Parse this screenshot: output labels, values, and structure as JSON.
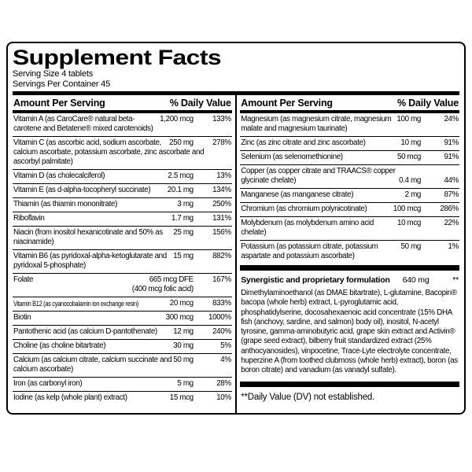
{
  "colors": {
    "background": "#ffffff",
    "text": "#000000",
    "rule": "#000000",
    "border": "#000000"
  },
  "panel": {
    "title": "Supplement Facts",
    "serving_size": "Serving Size 4 tablets",
    "servings_per_container": "Servings Per Container 45"
  },
  "columns": [
    {
      "header": {
        "amount_label": "Amount Per Serving",
        "dv_label": "% Daily Value"
      },
      "rows": [
        {
          "name": "Vitamin A (as CaroCare® natural beta-carotene and Betatene® mixed carotenoids)",
          "amount": "1,200 mcg",
          "dv": "133%"
        },
        {
          "name": "Vitamin C (as ascorbic acid, sodium ascorbate, calcium ascorbate, potassium ascorbate, zinc ascorbate and ascorbyl palmitate)",
          "amount": "250 mg",
          "dv": "278%"
        },
        {
          "name": "Vitamin D (as cholecalciferol)",
          "amount": "2.5 mcg",
          "dv": "13%"
        },
        {
          "name": "Vitamin E (as d-alpha-tocopheryl succinate)",
          "amount": "20.1 mg",
          "dv": "134%"
        },
        {
          "name": "Thiamin (as thiamin mononitrate)",
          "amount": "3 mg",
          "dv": "250%"
        },
        {
          "name": "Riboflavin",
          "amount": "1.7 mg",
          "dv": "131%"
        },
        {
          "name": "Niacin (from inositol hexanicotinate and 50% as niacinamide)",
          "amount": "25 mg",
          "dv": "156%"
        },
        {
          "name": "Vitamin B6 (as pyridoxal-alpha-ketoglutarate and pyridoxal 5-phosphate)",
          "amount": "15 mg",
          "dv": "882%"
        },
        {
          "name": "Folate",
          "amount": "665 mcg DFE",
          "amount2": "(400 mcg folic acid)",
          "dv": "167%"
        },
        {
          "name": "Vitamin B12 (as cyanocobalamin ion exchange resin)",
          "amount": "20 mcg",
          "dv": "833%",
          "condensed": true
        },
        {
          "name": "Biotin",
          "amount": "300 mcg",
          "dv": "1000%"
        },
        {
          "name": "Pantothenic acid (as calcium D-pantothenate)",
          "amount": "12 mg",
          "dv": "240%"
        },
        {
          "name": "Choline (as choline bitartrate)",
          "amount": "30 mg",
          "dv": "5%"
        },
        {
          "name": "Calcium (as calcium citrate, calcium succinate and calcium ascorbate)",
          "amount": "50 mg",
          "dv": "4%"
        },
        {
          "name": "Iron (as carbonyl iron)",
          "amount": "5 mg",
          "dv": "28%"
        },
        {
          "name": "Iodine (as kelp (whole plant) extract)",
          "amount": "15 mcg",
          "dv": "10%"
        }
      ]
    },
    {
      "header": {
        "amount_label": "Amount Per Serving",
        "dv_label": "% Daily Value"
      },
      "rows": [
        {
          "name": "Magnesium (as magnesium citrate, magnesium malate and magnesium taurinate)",
          "amount": "100 mg",
          "dv": "24%"
        },
        {
          "name": "Zinc (as zinc citrate and zinc ascorbate)",
          "amount": "10 mg",
          "dv": "91%"
        },
        {
          "name": "Selenium (as selenomethionine)",
          "amount": "50 mcg",
          "dv": "91%"
        },
        {
          "name": "Copper (as copper citrate and TRAACS® copper glycinate chelate)",
          "amount": "0.4 mg",
          "dv": "44%",
          "valign": "bottom"
        },
        {
          "name": "Manganese (as manganese citrate)",
          "amount": "2 mg",
          "dv": "87%"
        },
        {
          "name": "Chromium (as chromium polynicotinate)",
          "amount": "100 mcg",
          "dv": "286%"
        },
        {
          "name": "Molybdenum (as molybdenum amino acid chelate)",
          "amount": "10 mcg",
          "dv": "22%"
        },
        {
          "name": "Potassium (as potassium citrate, potassium aspartate and potassium ascorbate)",
          "amount": "50 mg",
          "dv": "1%"
        }
      ],
      "formulation": {
        "name": "Synergistic and proprietary formulation",
        "amount": "640 mg",
        "dv": "**",
        "description": "Dimethylaminoethanol (as DMAE bitartrate), L-glutamine, Bacopin® bacopa (whole herb) extract, L-pyroglutamic acid, phosphatidylserine, docosahexaenoic acid concentrate (15% DHA fish (anchovy, sardine, and salmon) body oil), inositol, N-acetyl tyrosine, gamma-aminobutyric acid, grape skin extract and Activin® (grape seed extract), bilberry fruit standardized extract (25% anthocyanosides), vinpocetine, Trace-Lyte electrolyte concentrate, huperzine A (from toothed clubmoss (whole herb) extract), boron (as boron citrate) and vanadium (as vanadyl sulfate)."
      },
      "footnote": "**Daily Value (DV) not established."
    }
  ]
}
